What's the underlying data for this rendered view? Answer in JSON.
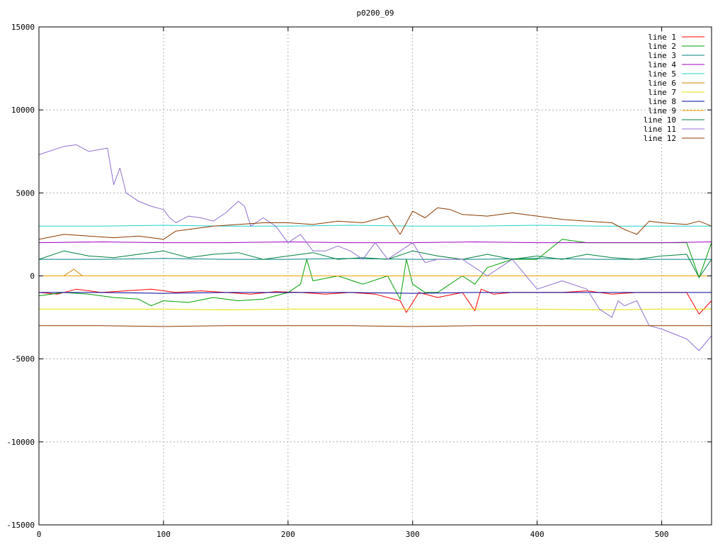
{
  "chart_data": {
    "type": "line",
    "title": "p0200_09",
    "xlabel": "",
    "ylabel": "",
    "xlim": [
      0,
      540
    ],
    "ylim": [
      -15000,
      15000
    ],
    "xticks": [
      "0",
      "100",
      "200",
      "300",
      "400",
      "500"
    ],
    "yticks": [
      "-15000",
      "-10000",
      "-5000",
      "0",
      "5000",
      "10000",
      "15000"
    ],
    "grid": true,
    "legend": "top-right",
    "series": [
      {
        "name": "line 1",
        "color": "#ff0000",
        "x": [
          0,
          15,
          30,
          50,
          70,
          90,
          110,
          130,
          150,
          170,
          190,
          210,
          230,
          250,
          270,
          290,
          295,
          305,
          320,
          340,
          350,
          355,
          365,
          380,
          400,
          420,
          440,
          460,
          480,
          500,
          520,
          530,
          540
        ],
        "y": [
          -1000,
          -1100,
          -800,
          -1000,
          -900,
          -800,
          -1000,
          -900,
          -1000,
          -1100,
          -950,
          -1000,
          -1100,
          -1000,
          -1100,
          -1500,
          -2200,
          -1000,
          -1300,
          -1000,
          -2100,
          -800,
          -1100,
          -1000,
          -1000,
          -1000,
          -900,
          -1100,
          -1000,
          -1000,
          -1000,
          -2300,
          -1500
        ]
      },
      {
        "name": "line 2",
        "color": "#00a000",
        "x": [
          0,
          20,
          40,
          60,
          80,
          90,
          100,
          120,
          140,
          160,
          180,
          200,
          210,
          215,
          220,
          240,
          260,
          280,
          290,
          295,
          300,
          310,
          320,
          340,
          350,
          360,
          380,
          400,
          420,
          440,
          460,
          480,
          500,
          520,
          530,
          540
        ],
        "y": [
          -1200,
          -1000,
          -1100,
          -1300,
          -1400,
          -1800,
          -1500,
          -1600,
          -1300,
          -1500,
          -1400,
          -1000,
          -500,
          1000,
          -300,
          0,
          -500,
          0,
          -1400,
          1000,
          -500,
          -1000,
          -1000,
          0,
          -500,
          500,
          1000,
          1000,
          2200,
          2000,
          2000,
          2000,
          2000,
          2000,
          -100,
          2000
        ]
      },
      {
        "name": "line 3",
        "color": "#008080",
        "x": [
          0,
          50,
          100,
          150,
          200,
          250,
          300,
          350,
          400,
          450,
          500,
          540
        ],
        "y": [
          1000,
          1000,
          1050,
          1000,
          1000,
          1050,
          1000,
          1000,
          1050,
          1000,
          1000,
          1000
        ]
      },
      {
        "name": "line 4",
        "color": "#a000c0",
        "x": [
          0,
          50,
          100,
          150,
          200,
          250,
          300,
          350,
          400,
          450,
          500,
          540
        ],
        "y": [
          2000,
          2050,
          2000,
          2000,
          2050,
          2000,
          2000,
          2050,
          2000,
          2000,
          2000,
          2050
        ]
      },
      {
        "name": "line 5",
        "color": "#20d0d0",
        "x": [
          0,
          50,
          100,
          150,
          200,
          250,
          300,
          350,
          400,
          450,
          500,
          540
        ],
        "y": [
          3000,
          3000,
          3050,
          3000,
          3000,
          3050,
          3000,
          3000,
          3050,
          3000,
          3000,
          3000
        ]
      },
      {
        "name": "line 6",
        "color": "#d08000",
        "x": [
          0,
          20,
          28,
          35,
          50,
          100,
          150,
          200,
          250,
          300,
          350,
          400,
          450,
          500,
          540
        ],
        "y": [
          0,
          0,
          400,
          0,
          0,
          0,
          0,
          0,
          0,
          0,
          0,
          0,
          0,
          0,
          0
        ]
      },
      {
        "name": "line 7",
        "color": "#e0e000",
        "x": [
          0,
          50,
          100,
          150,
          200,
          250,
          300,
          350,
          400,
          450,
          500,
          540
        ],
        "y": [
          -2000,
          -2000,
          -2000,
          -2050,
          -2000,
          -2000,
          -2000,
          -2000,
          -2000,
          -2050,
          -2000,
          -2000
        ]
      },
      {
        "name": "line 8",
        "color": "#0000a0",
        "x": [
          0,
          50,
          100,
          150,
          200,
          250,
          300,
          350,
          400,
          450,
          500,
          540
        ],
        "y": [
          -1000,
          -1000,
          -1050,
          -1000,
          -1000,
          -1000,
          -1050,
          -1000,
          -1000,
          -1000,
          -1000,
          -1000
        ]
      },
      {
        "name": "line 9",
        "color": "#f0a000",
        "x": [
          0,
          50,
          100,
          150,
          200,
          250,
          300,
          350,
          400,
          450,
          500,
          540
        ],
        "y": [
          0,
          0,
          0,
          0,
          0,
          0,
          0,
          0,
          0,
          0,
          0,
          0
        ]
      },
      {
        "name": "line 10",
        "color": "#008040",
        "x": [
          0,
          20,
          40,
          60,
          80,
          100,
          120,
          140,
          160,
          180,
          200,
          220,
          240,
          260,
          280,
          300,
          320,
          340,
          360,
          380,
          400,
          420,
          440,
          460,
          480,
          500,
          520,
          530,
          540
        ],
        "y": [
          1000,
          1500,
          1200,
          1100,
          1300,
          1500,
          1100,
          1300,
          1400,
          1000,
          1200,
          1400,
          1000,
          1100,
          1000,
          1500,
          1200,
          1000,
          1300,
          1000,
          1200,
          1000,
          1300,
          1100,
          1000,
          1200,
          1300,
          -100,
          1000
        ]
      },
      {
        "name": "line 11",
        "color": "#9070d0",
        "x": [
          0,
          20,
          30,
          40,
          55,
          60,
          65,
          70,
          80,
          90,
          100,
          105,
          110,
          120,
          130,
          140,
          150,
          160,
          165,
          170,
          180,
          190,
          200,
          210,
          220,
          230,
          240,
          250,
          260,
          270,
          280,
          290,
          300,
          310,
          320,
          340,
          360,
          380,
          400,
          420,
          440,
          450,
          460,
          465,
          470,
          480,
          490,
          500,
          510,
          520,
          530,
          540
        ],
        "y": [
          7300,
          7800,
          7900,
          7500,
          7700,
          5500,
          6500,
          5000,
          4500,
          4200,
          4000,
          3500,
          3200,
          3600,
          3500,
          3300,
          3800,
          4500,
          4200,
          3000,
          3500,
          3000,
          2000,
          2500,
          1500,
          1500,
          1800,
          1500,
          1000,
          2000,
          1000,
          1500,
          2000,
          800,
          1000,
          1000,
          0,
          1000,
          -800,
          -300,
          -800,
          -2000,
          -2500,
          -1500,
          -1800,
          -1500,
          -3000,
          -3200,
          -3500,
          -3800,
          -4500,
          -3600
        ]
      },
      {
        "name": "line 12",
        "color": "#8b3a00",
        "x": [
          0,
          20,
          40,
          60,
          80,
          100,
          110,
          120,
          140,
          160,
          180,
          200,
          220,
          240,
          260,
          280,
          290,
          300,
          310,
          320,
          330,
          340,
          360,
          380,
          400,
          420,
          440,
          460,
          470,
          480,
          490,
          500,
          520,
          530,
          540
        ],
        "y": [
          2200,
          2500,
          2400,
          2300,
          2400,
          2200,
          2700,
          2800,
          3000,
          3100,
          3200,
          3200,
          3100,
          3300,
          3200,
          3600,
          2500,
          3900,
          3500,
          4100,
          4000,
          3700,
          3600,
          3800,
          3600,
          3400,
          3300,
          3200,
          2800,
          2500,
          3300,
          3200,
          3100,
          3300,
          3000
        ]
      },
      {
        "name": "",
        "color": "#8b3a00",
        "x": [
          0,
          50,
          100,
          150,
          200,
          250,
          300,
          350,
          400,
          450,
          500,
          540
        ],
        "y": [
          -3000,
          -3000,
          -3050,
          -3000,
          -3000,
          -3000,
          -3050,
          -3000,
          -3000,
          -3000,
          -3000,
          -3000
        ]
      }
    ]
  }
}
